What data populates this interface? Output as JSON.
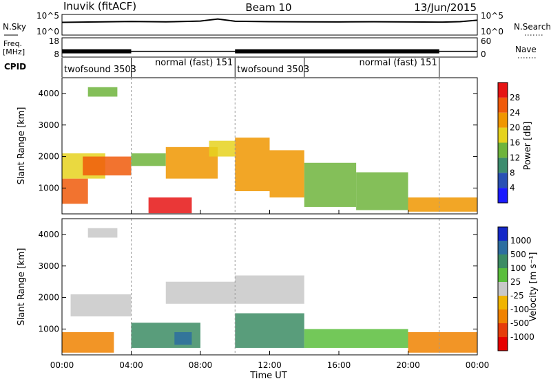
{
  "header": {
    "station": "Inuvik (fitACF)",
    "beam": "Beam 10",
    "date": "13/Jun/2015"
  },
  "strip_labels": {
    "nsky": "N.Sky",
    "nsearch": "N.Search",
    "freq": "Freq.",
    "freq_unit": "[MHz]",
    "nave": "Nave",
    "cpid": "CPID"
  },
  "colors": {
    "power_scale": [
      "#1a1aff",
      "#2850b4",
      "#3c8c6e",
      "#6eb43c",
      "#e6d21e",
      "#f09600",
      "#f05a0a",
      "#e61414"
    ],
    "velocity_scale": [
      "#1428c8",
      "#2d6ea0",
      "#3c8c64",
      "#5abe3c",
      "#c8c8c8",
      "#f0b400",
      "#f08200",
      "#e63c0a",
      "#e60000"
    ]
  },
  "chart_data": [
    {
      "type": "line",
      "name": "noise",
      "y_ticks_left": [
        "10^5",
        "10^0"
      ],
      "y_ticks_right": [
        "10^5",
        "10^0"
      ],
      "series": [
        {
          "name": "N.Sky",
          "x": [
            0,
            2,
            4,
            6,
            8,
            9,
            10,
            12,
            14,
            16,
            18,
            20,
            22,
            23,
            24
          ],
          "y": [
            1200,
            1500,
            2000,
            1600,
            2500,
            8000,
            2200,
            1800,
            1600,
            1500,
            1700,
            1500,
            1400,
            1800,
            4000
          ]
        }
      ]
    },
    {
      "type": "line",
      "name": "frequency",
      "y_ticks_left": [
        "18",
        "8"
      ],
      "y_ticks_right": [
        "60",
        "0"
      ],
      "series": [
        {
          "name": "Freq.",
          "x": [
            0,
            4,
            4,
            10,
            10,
            21.8,
            21.8,
            24
          ],
          "y": [
            11,
            11,
            11,
            11,
            11,
            11,
            11,
            11
          ]
        }
      ]
    },
    {
      "type": "table",
      "name": "cpid",
      "segments": [
        {
          "label": "twofsound 3503",
          "start": 0,
          "end": 4
        },
        {
          "label": "normal (fast) 151",
          "start": 4,
          "end": 10
        },
        {
          "label": "twofsound 3503",
          "start": 10,
          "end": 14
        },
        {
          "label": "normal (fast) 151",
          "start": 14,
          "end": 21.8
        }
      ]
    },
    {
      "type": "heatmap",
      "name": "power",
      "ylabel": "Slant Range [km]",
      "y_ticks": [
        1000,
        2000,
        3000,
        4000
      ],
      "ylim": [
        180,
        4500
      ],
      "xlim": [
        0,
        24
      ],
      "colorbar_label": "Power [dB]",
      "colorbar_ticks": [
        4,
        8,
        12,
        16,
        20,
        24,
        28
      ],
      "clim": [
        0,
        32
      ],
      "regions": [
        {
          "t0": 0.0,
          "t1": 1.5,
          "r0": 500,
          "r1": 1300,
          "value": 26
        },
        {
          "t0": 0.0,
          "t1": 2.5,
          "r0": 1300,
          "r1": 2100,
          "value": 19
        },
        {
          "t0": 1.2,
          "t1": 4.0,
          "r0": 1400,
          "r1": 2000,
          "value": 24
        },
        {
          "t0": 1.5,
          "t1": 3.2,
          "r0": 3900,
          "r1": 4200,
          "value": 14
        },
        {
          "t0": 4.0,
          "t1": 6.0,
          "r0": 1700,
          "r1": 2100,
          "value": 15
        },
        {
          "t0": 5.0,
          "t1": 7.5,
          "r0": 200,
          "r1": 700,
          "value": 29
        },
        {
          "t0": 6.0,
          "t1": 9.0,
          "r0": 1300,
          "r1": 2300,
          "value": 20
        },
        {
          "t0": 8.5,
          "t1": 10.0,
          "r0": 2000,
          "r1": 2500,
          "value": 17
        },
        {
          "t0": 10.0,
          "t1": 12.0,
          "r0": 900,
          "r1": 2600,
          "value": 23
        },
        {
          "t0": 12.0,
          "t1": 14.0,
          "r0": 700,
          "r1": 2200,
          "value": 21
        },
        {
          "t0": 14.0,
          "t1": 17.0,
          "r0": 400,
          "r1": 1800,
          "value": 15
        },
        {
          "t0": 17.0,
          "t1": 20.0,
          "r0": 300,
          "r1": 1500,
          "value": 14
        },
        {
          "t0": 20.0,
          "t1": 24.0,
          "r0": 250,
          "r1": 700,
          "value": 22
        }
      ]
    },
    {
      "type": "heatmap",
      "name": "velocity",
      "xlabel": "Time UT",
      "ylabel": "Slant Range [km]",
      "x_ticks": [
        "00:00",
        "04:00",
        "08:00",
        "12:00",
        "16:00",
        "20:00",
        "00:00"
      ],
      "y_ticks": [
        1000,
        2000,
        3000,
        4000
      ],
      "ylim": [
        180,
        4500
      ],
      "xlim": [
        0,
        24
      ],
      "colorbar_label": "Velocity [m s⁻¹]",
      "colorbar_ticks": [
        1000,
        500,
        100,
        25,
        -25,
        -100,
        -500,
        -1000
      ],
      "regions": [
        {
          "t0": 0.0,
          "t1": 3.0,
          "r0": 250,
          "r1": 900,
          "value": -300
        },
        {
          "t0": 0.5,
          "t1": 4.0,
          "r0": 1400,
          "r1": 2100,
          "value": 0
        },
        {
          "t0": 1.5,
          "t1": 3.2,
          "r0": 3900,
          "r1": 4200,
          "value": 0
        },
        {
          "t0": 4.0,
          "t1": 8.0,
          "r0": 400,
          "r1": 1200,
          "value": 200
        },
        {
          "t0": 6.0,
          "t1": 10.0,
          "r0": 1800,
          "r1": 2500,
          "value": 0
        },
        {
          "t0": 6.5,
          "t1": 7.5,
          "r0": 500,
          "r1": 900,
          "value": 800
        },
        {
          "t0": 10.0,
          "t1": 14.0,
          "r0": 400,
          "r1": 1500,
          "value": 150
        },
        {
          "t0": 10.0,
          "t1": 14.0,
          "r0": 1800,
          "r1": 2700,
          "value": 0
        },
        {
          "t0": 14.0,
          "t1": 20.0,
          "r0": 400,
          "r1": 1000,
          "value": 60
        },
        {
          "t0": 20.0,
          "t1": 24.0,
          "r0": 250,
          "r1": 900,
          "value": -200
        }
      ]
    }
  ]
}
